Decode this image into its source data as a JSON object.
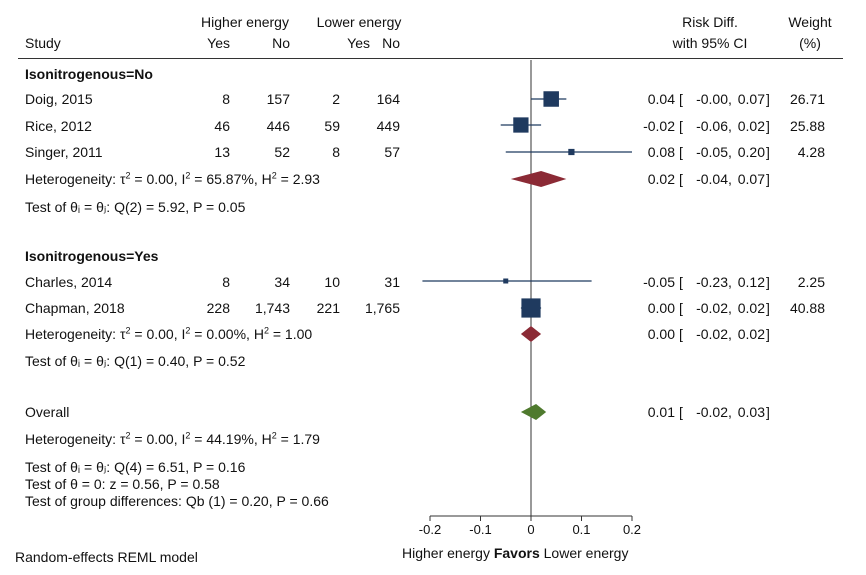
{
  "header": {
    "study": "Study",
    "group1": "Higher energy",
    "group2": "Lower energy",
    "yes": "Yes",
    "no": "No",
    "rd_line1": "Risk Diff.",
    "rd_line2": "with 95% CI",
    "weight_line1": "Weight",
    "weight_line2": "(%)"
  },
  "subgroups": [
    {
      "title": "Isonitrogenous=No",
      "studies": [
        {
          "name": "Doig, 2015",
          "a_yes": "8",
          "a_no": "157",
          "b_yes": "2",
          "b_no": "164",
          "rd": "0.04",
          "lo": "-0.00",
          "hi": "0.07",
          "weight": "26.71"
        },
        {
          "name": "Rice, 2012",
          "a_yes": "46",
          "a_no": "446",
          "b_yes": "59",
          "b_no": "449",
          "rd": "-0.02",
          "lo": "-0.06",
          "hi": "0.02",
          "weight": "25.88"
        },
        {
          "name": "Singer, 2011",
          "a_yes": "13",
          "a_no": "52",
          "b_yes": "8",
          "b_no": "57",
          "rd": "0.08",
          "lo": "-0.05",
          "hi": "0.20",
          "weight": "4.28"
        }
      ],
      "het_prefix": "Heterogeneity:  τ",
      "het_rest1": " = 0.00, I",
      "het_rest2": " = 65.87%, H",
      "het_rest3": " = 2.93",
      "pooled": {
        "rd": "0.02",
        "lo": "-0.04",
        "hi": "0.07"
      },
      "test": "Test of  θᵢ = θⱼ: Q(2) = 5.92, P = 0.05"
    },
    {
      "title": "Isonitrogenous=Yes",
      "studies": [
        {
          "name": "Charles, 2014",
          "a_yes": "8",
          "a_no": "34",
          "b_yes": "10",
          "b_no": "31",
          "rd": "-0.05",
          "lo": "-0.23",
          "hi": "0.12",
          "weight": "2.25"
        },
        {
          "name": "Chapman, 2018",
          "a_yes": "228",
          "a_no": "1,743",
          "b_yes": "221",
          "b_no": "1,765",
          "rd": "0.00",
          "lo": "-0.02",
          "hi": "0.02",
          "weight": "40.88"
        }
      ],
      "het_prefix": "Heterogeneity:  τ",
      "het_rest1": " = 0.00, I",
      "het_rest2": " = 0.00%, H",
      "het_rest3": " = 1.00",
      "pooled": {
        "rd": "0.00",
        "lo": "-0.02",
        "hi": "0.02"
      },
      "test": "Test of  θᵢ = θⱼ: Q(1) = 0.40, P = 0.52"
    }
  ],
  "overall": {
    "label": "Overall",
    "rd": "0.01",
    "lo": "-0.02",
    "hi": "0.03",
    "het_prefix": "Heterogeneity:  τ",
    "het_rest1": " = 0.00, I",
    "het_rest2": " = 44.19%, H",
    "het_rest3": " = 1.79",
    "test1": "Test of  θᵢ = θⱼ: Q(4) = 6.51, P = 0.16",
    "test2": "Test of  θ = 0: z = 0.56, P = 0.58",
    "test3": "Test of group differences: Qb (1) = 0.20, P = 0.66"
  },
  "footer": {
    "model": "Random-effects REML model",
    "favors_left": "Higher energy",
    "favors_mid": "Favors",
    "favors_right": "Lower energy"
  },
  "colors": {
    "box": "#1f3a5f",
    "ci": "#1f3a5f",
    "subgroup_diamond": "#8b2a35",
    "overall_diamond": "#4f7a2e",
    "axis": "#333333"
  },
  "chart_data": {
    "type": "forest",
    "xlim": [
      -0.2,
      0.2
    ],
    "ticks": [
      -0.2,
      -0.1,
      0,
      0.1,
      0.2
    ],
    "tick_labels": [
      "-0.2",
      "-0.1",
      "0",
      "0.1",
      "0.2"
    ],
    "studies": [
      {
        "name": "Doig, 2015",
        "rd": 0.04,
        "lo": -0.0,
        "hi": 0.07,
        "weight": 26.71
      },
      {
        "name": "Rice, 2012",
        "rd": -0.02,
        "lo": -0.06,
        "hi": 0.02,
        "weight": 25.88
      },
      {
        "name": "Singer, 2011",
        "rd": 0.08,
        "lo": -0.05,
        "hi": 0.2,
        "weight": 4.28
      },
      {
        "name": "Charles, 2014",
        "rd": -0.05,
        "lo": -0.23,
        "hi": 0.12,
        "weight": 2.25
      },
      {
        "name": "Chapman, 2018",
        "rd": 0.0,
        "lo": -0.02,
        "hi": 0.02,
        "weight": 40.88
      }
    ],
    "pooled": [
      {
        "name": "Isonitrogenous=No",
        "rd": 0.02,
        "lo": -0.04,
        "hi": 0.07
      },
      {
        "name": "Isonitrogenous=Yes",
        "rd": 0.0,
        "lo": -0.02,
        "hi": 0.02
      },
      {
        "name": "Overall",
        "rd": 0.01,
        "lo": -0.02,
        "hi": 0.03
      }
    ]
  }
}
